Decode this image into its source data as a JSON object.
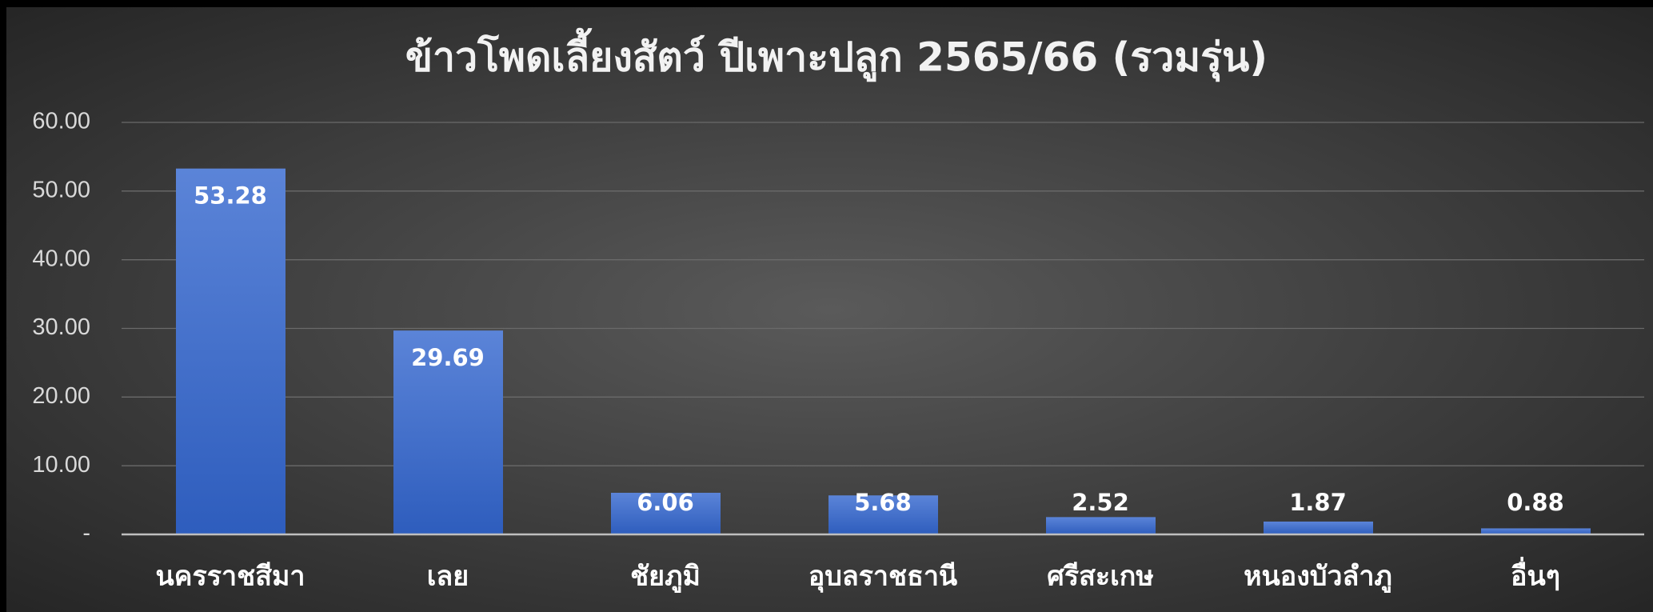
{
  "chart_data": {
    "type": "bar",
    "title": "ข้าวโพดเลี้ยงสัตว์ ปีเพาะปลูก 2565/66 (รวมรุ่น)",
    "categories": [
      "นครราชสีมา",
      "เลย",
      "ชัยภูมิ",
      "อุบลราชธานี",
      "ศรีสะเกษ",
      "หนองบัวลำภู",
      "อื่นๆ"
    ],
    "values": [
      53.28,
      29.69,
      6.06,
      5.68,
      2.52,
      1.87,
      0.88
    ],
    "color": "#4472c4",
    "ylim": [
      0,
      60
    ],
    "yticks": [
      {
        "value": 0,
        "label": "-"
      },
      {
        "value": 10,
        "label": "10.00"
      },
      {
        "value": 20,
        "label": "20.00"
      },
      {
        "value": 30,
        "label": "30.00"
      },
      {
        "value": 40,
        "label": "40.00"
      },
      {
        "value": 50,
        "label": "50.00"
      },
      {
        "value": 60,
        "label": "60.00"
      }
    ],
    "grid": true
  }
}
